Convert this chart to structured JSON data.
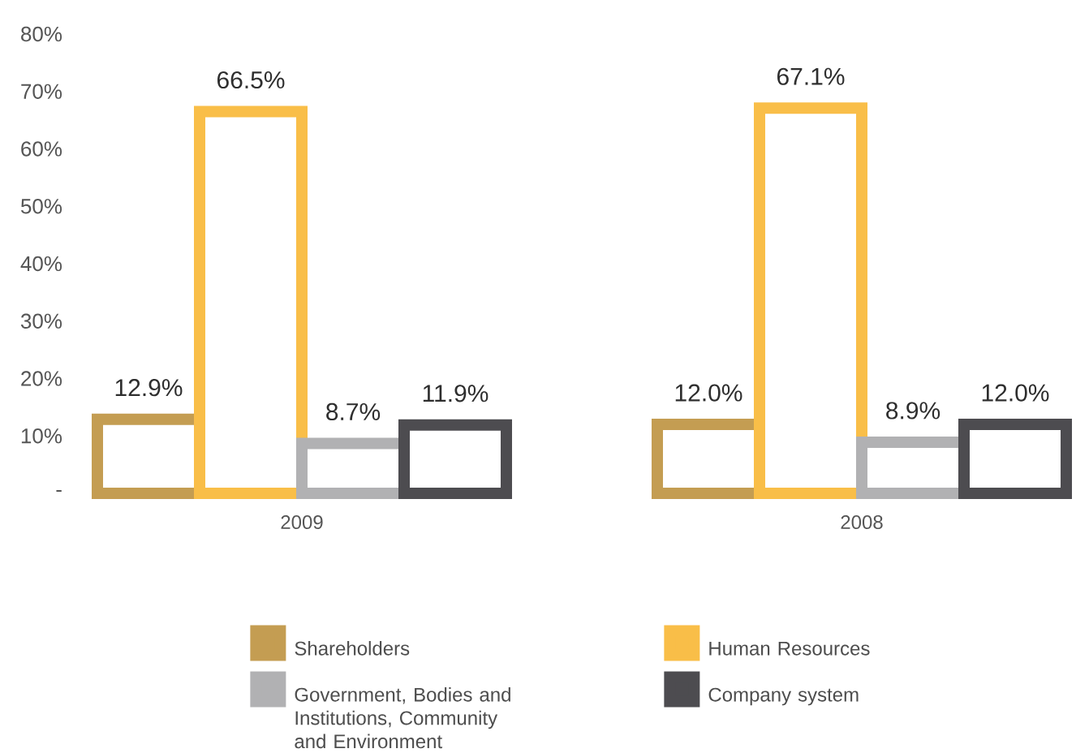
{
  "chart_data": {
    "type": "bar",
    "categories": [
      "2009",
      "2008"
    ],
    "series": [
      {
        "name": "Shareholders",
        "color": "#c49d52",
        "values": [
          12.9,
          12.0
        ],
        "value_labels": [
          "12.9%",
          "12.0%"
        ]
      },
      {
        "name": "Human Resources",
        "color": "#f9be48",
        "values": [
          66.5,
          67.1
        ],
        "value_labels": [
          "66.5%",
          "67.1%"
        ]
      },
      {
        "name": "Government, Bodies and Institutions, Community and Environment",
        "color": "#b1b1b3",
        "values": [
          8.7,
          8.9
        ],
        "value_labels": [
          "8.7%",
          "8.9%"
        ]
      },
      {
        "name": "Company system",
        "color": "#4d4c50",
        "values": [
          11.9,
          12.0
        ],
        "value_labels": [
          "11.9%",
          "12.0%"
        ]
      }
    ],
    "ylim": [
      0,
      80
    ],
    "yticks": [
      {
        "value": 0,
        "label": "-"
      },
      {
        "value": 10,
        "label": "10%"
      },
      {
        "value": 20,
        "label": "20%"
      },
      {
        "value": 30,
        "label": "30%"
      },
      {
        "value": 40,
        "label": "40%"
      },
      {
        "value": 50,
        "label": "50%"
      },
      {
        "value": 60,
        "label": "60%"
      },
      {
        "value": 70,
        "label": "70%"
      },
      {
        "value": 80,
        "label": "80%"
      }
    ],
    "legend": "bottom"
  }
}
